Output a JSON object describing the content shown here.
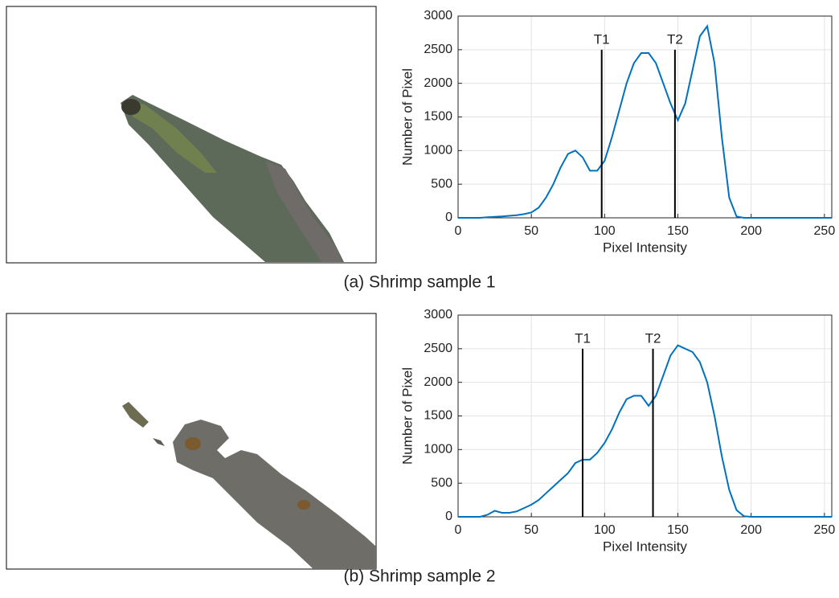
{
  "chart_data": [
    {
      "type": "line",
      "caption": "(a) Shrimp sample 1",
      "xlabel": "Pixel Intensity",
      "ylabel": "Number of Pixel",
      "x": [
        0,
        5,
        10,
        15,
        20,
        25,
        30,
        35,
        40,
        45,
        50,
        55,
        60,
        65,
        70,
        75,
        80,
        85,
        90,
        95,
        100,
        105,
        110,
        115,
        120,
        125,
        130,
        135,
        140,
        145,
        150,
        155,
        160,
        165,
        170,
        175,
        180,
        185,
        190,
        195,
        200,
        205,
        210,
        215,
        220,
        225,
        230,
        235,
        240,
        245,
        250,
        255
      ],
      "values": [
        0,
        0,
        0,
        0,
        10,
        15,
        20,
        30,
        40,
        55,
        80,
        150,
        300,
        500,
        750,
        950,
        1000,
        900,
        700,
        700,
        850,
        1200,
        1600,
        2000,
        2300,
        2450,
        2450,
        2300,
        2000,
        1700,
        1450,
        1700,
        2200,
        2700,
        2850,
        2300,
        1200,
        300,
        20,
        0,
        0,
        0,
        0,
        0,
        0,
        0,
        0,
        0,
        0,
        0,
        0,
        0
      ],
      "color": "#0072bd",
      "xlim": [
        0,
        255
      ],
      "xticks": [
        0,
        50,
        100,
        150,
        200,
        250
      ],
      "ylim": [
        0,
        3000
      ],
      "yticks": [
        0,
        500,
        1000,
        1500,
        2000,
        2500,
        3000
      ],
      "grid": true,
      "annotations": [
        {
          "label": "T1",
          "x": 98,
          "y": 2500
        },
        {
          "label": "T2",
          "x": 148,
          "y": 2500
        }
      ]
    },
    {
      "type": "line",
      "caption": "(b) Shrimp sample 2",
      "xlabel": "Pixel Intensity",
      "ylabel": "Number of Pixel",
      "x": [
        0,
        5,
        10,
        15,
        20,
        25,
        30,
        35,
        40,
        45,
        50,
        55,
        60,
        65,
        70,
        75,
        80,
        85,
        90,
        95,
        100,
        105,
        110,
        115,
        120,
        125,
        130,
        135,
        140,
        145,
        150,
        155,
        160,
        165,
        170,
        175,
        180,
        185,
        190,
        195,
        200,
        205,
        210,
        215,
        220,
        225,
        230,
        235,
        240,
        245,
        250,
        255
      ],
      "values": [
        0,
        0,
        0,
        0,
        30,
        90,
        60,
        60,
        80,
        130,
        180,
        250,
        350,
        450,
        550,
        650,
        800,
        850,
        850,
        950,
        1100,
        1300,
        1550,
        1750,
        1800,
        1800,
        1650,
        1800,
        2100,
        2400,
        2550,
        2500,
        2450,
        2300,
        2000,
        1500,
        900,
        400,
        100,
        10,
        0,
        0,
        0,
        0,
        0,
        0,
        0,
        0,
        0,
        0,
        0,
        0
      ],
      "color": "#0072bd",
      "xlim": [
        0,
        255
      ],
      "xticks": [
        0,
        50,
        100,
        150,
        200,
        250
      ],
      "ylim": [
        0,
        3000
      ],
      "yticks": [
        0,
        500,
        1000,
        1500,
        2000,
        2500,
        3000
      ],
      "grid": true,
      "annotations": [
        {
          "label": "T1",
          "x": 85,
          "y": 2500
        },
        {
          "label": "T2",
          "x": 133,
          "y": 2500
        }
      ]
    }
  ]
}
